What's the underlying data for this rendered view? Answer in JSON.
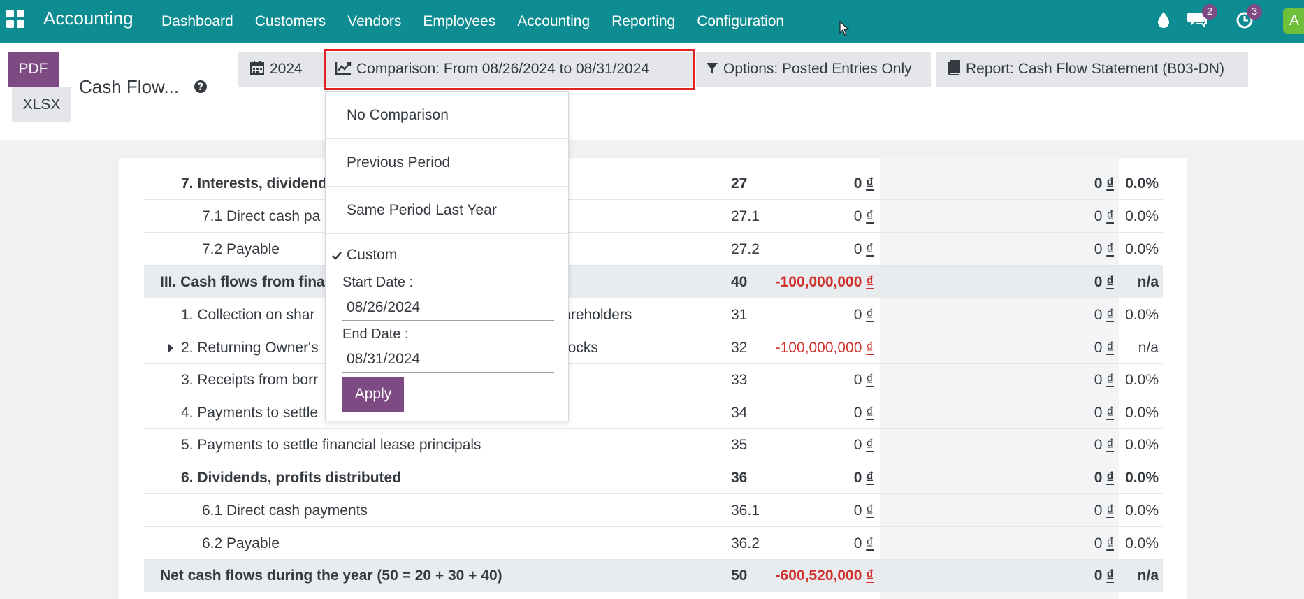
{
  "navbar": {
    "brand": "Accounting",
    "menu": [
      "Dashboard",
      "Customers",
      "Vendors",
      "Employees",
      "Accounting",
      "Reporting",
      "Configuration"
    ],
    "messages_badge": "2",
    "activities_badge": "3",
    "avatar_letter": "A"
  },
  "control_panel": {
    "pdf_label": "PDF",
    "xlsx_label": "XLSX",
    "title": "Cash Flow...",
    "date_filter": "2024",
    "comparison_filter": "Comparison: From 08/26/2024 to 08/31/2024",
    "options_filter": "Options: Posted Entries Only",
    "report_filter": "Report: Cash Flow Statement (B03-DN)"
  },
  "comparison_dropdown": {
    "options": [
      "No Comparison",
      "Previous Period",
      "Same Period Last Year"
    ],
    "custom_label": "Custom",
    "start_label": "Start Date :",
    "start_value": "08/26/2024",
    "end_label": "End Date :",
    "end_value": "08/31/2024",
    "apply_label": "Apply"
  },
  "report": {
    "currency": "₫",
    "rows": [
      {
        "label": "7. Interests, dividend",
        "code": "27",
        "amount": "0",
        "compare": "0",
        "pct": "0.0%",
        "style": "bold"
      },
      {
        "label": "7.1 Direct cash pa",
        "code": "27.1",
        "amount": "0",
        "compare": "0",
        "pct": "0.0%",
        "style": "sub"
      },
      {
        "label": "7.2 Payable",
        "code": "27.2",
        "amount": "0",
        "compare": "0",
        "pct": "0.0%",
        "style": "sub"
      },
      {
        "label": "III. Cash flows from fina",
        "code": "40",
        "amount": "-100,000,000",
        "compare": "0",
        "pct": "n/a",
        "style": "section"
      },
      {
        "label": "1. Collection on shar                                              s from shareholders",
        "code": "31",
        "amount": "0",
        "compare": "0",
        "pct": "0.0%",
        "style": "normal"
      },
      {
        "label": "2. Returning Owner's                                                asury Stocks",
        "code": "32",
        "amount": "-100,000,000",
        "compare": "0",
        "pct": "n/a",
        "style": "normal"
      },
      {
        "label": "3. Receipts from borr",
        "code": "33",
        "amount": "0",
        "compare": "0",
        "pct": "0.0%",
        "style": "normal"
      },
      {
        "label": "4. Payments to settle",
        "code": "34",
        "amount": "0",
        "compare": "0",
        "pct": "0.0%",
        "style": "normal"
      },
      {
        "label": "5. Payments to settle financial lease principals",
        "code": "35",
        "amount": "0",
        "compare": "0",
        "pct": "0.0%",
        "style": "normal"
      },
      {
        "label": "6. Dividends, profits distributed",
        "code": "36",
        "amount": "0",
        "compare": "0",
        "pct": "0.0%",
        "style": "bold"
      },
      {
        "label": "6.1 Direct cash payments",
        "code": "36.1",
        "amount": "0",
        "compare": "0",
        "pct": "0.0%",
        "style": "sub"
      },
      {
        "label": "6.2 Payable",
        "code": "36.2",
        "amount": "0",
        "compare": "0",
        "pct": "0.0%",
        "style": "sub"
      },
      {
        "label": "Net cash flows during the year (50 = 20 + 30 + 40)",
        "code": "50",
        "amount": "-600,520,000",
        "compare": "0",
        "pct": "n/a",
        "style": "section"
      }
    ]
  }
}
